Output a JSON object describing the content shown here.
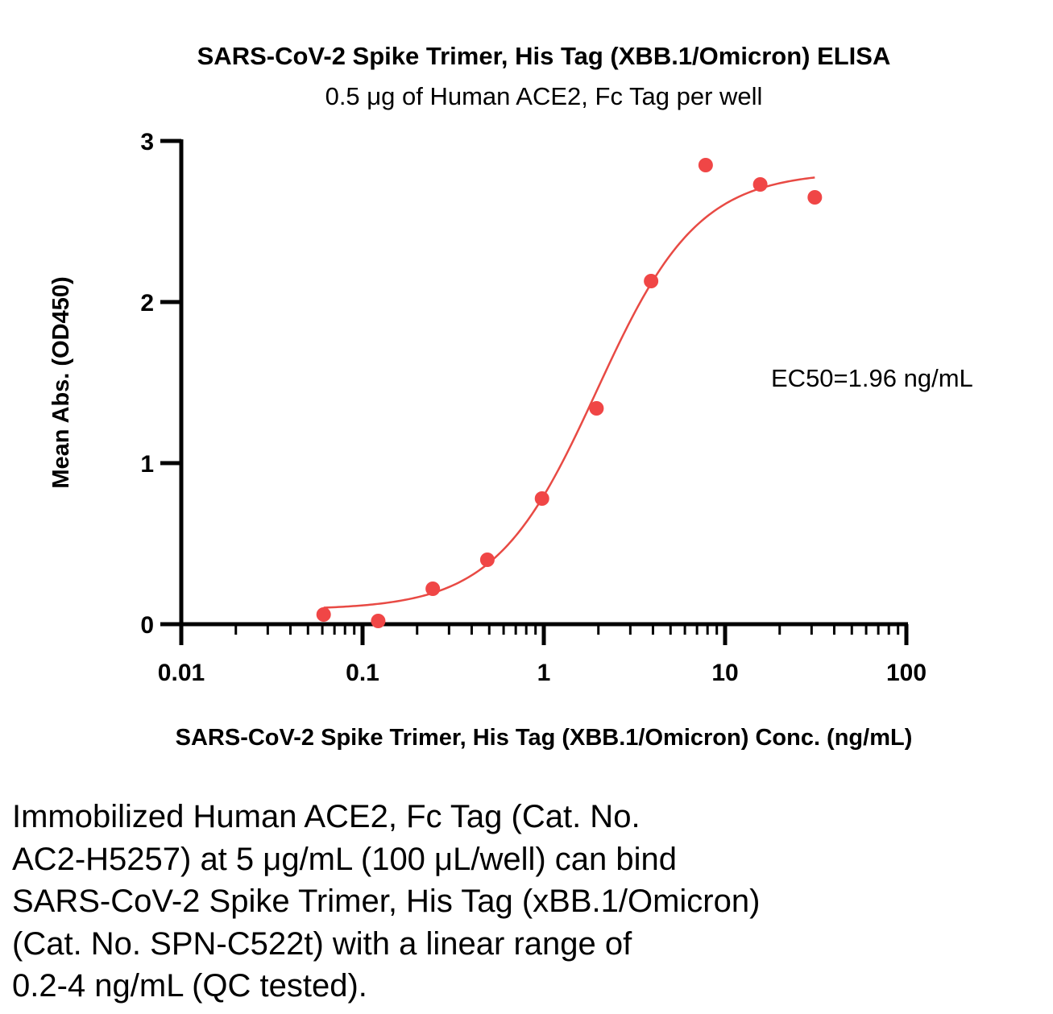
{
  "chart_data": {
    "type": "scatter",
    "title": "SARS-CoV-2 Spike Trimer, His Tag (XBB.1/Omicron) ELISA",
    "subtitle": "0.5 μg of Human ACE2, Fc Tag per well",
    "xlabel": "SARS-CoV-2 Spike Trimer, His Tag (XBB.1/Omicron) Conc. (ng/mL)",
    "ylabel": "Mean Abs. (OD450)",
    "x_scale": "log",
    "xlim": [
      0.01,
      100
    ],
    "ylim": [
      0,
      3
    ],
    "x_ticks": [
      0.01,
      0.1,
      1,
      10,
      100
    ],
    "x_tick_labels": [
      "0.01",
      "0.1",
      "1",
      "10",
      "100"
    ],
    "y_ticks": [
      0,
      1,
      2,
      3
    ],
    "y_tick_labels": [
      "0",
      "1",
      "2",
      "3"
    ],
    "grid": false,
    "annotation": "EC50=1.96 ng/mL",
    "series": [
      {
        "color": "#f04646",
        "x": [
          0.061,
          0.122,
          0.244,
          0.488,
          0.977,
          1.953,
          3.906,
          7.813,
          15.625,
          31.25
        ],
        "y": [
          0.06,
          0.02,
          0.22,
          0.4,
          0.78,
          1.34,
          2.13,
          2.85,
          2.73,
          2.65
        ]
      }
    ],
    "fit": {
      "color": "#e84a44",
      "model": "4PL",
      "bottom": 0.09,
      "top": 2.81,
      "ec50": 1.96,
      "hill": 1.55,
      "x_range": [
        0.061,
        31.25
      ]
    }
  },
  "caption": "Immobilized Human ACE2, Fc Tag (Cat. No.\nAC2-H5257) at 5 μg/mL (100 μL/well) can bind\nSARS-CoV-2 Spike Trimer, His Tag (xBB.1/Omicron)\n(Cat. No. SPN-C522t) with a linear range of\n0.2-4 ng/mL (QC tested)."
}
